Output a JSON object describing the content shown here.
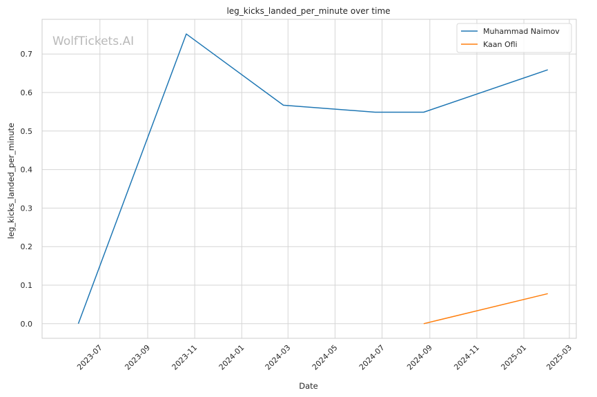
{
  "watermark": "WolfTickets.AI",
  "chart_data": {
    "type": "line",
    "title": "leg_kicks_landed_per_minute over time",
    "xlabel": "Date",
    "ylabel": "leg_kicks_landed_per_minute",
    "x_type": "date",
    "xlim": [
      "2023-04-17",
      "2025-03-10"
    ],
    "ylim": [
      -0.038,
      0.79
    ],
    "x_ticks": [
      "2023-07",
      "2023-09",
      "2023-11",
      "2024-01",
      "2024-03",
      "2024-05",
      "2024-07",
      "2024-09",
      "2024-11",
      "2025-01",
      "2025-03"
    ],
    "y_ticks": [
      0.0,
      0.1,
      0.2,
      0.3,
      0.4,
      0.5,
      0.6,
      0.7
    ],
    "grid": true,
    "legend_position": "top-right",
    "series": [
      {
        "name": "Muhammad Naimov",
        "color": "#1f77b4",
        "x": [
          "2023-06-03",
          "2023-10-21",
          "2024-02-24",
          "2024-06-22",
          "2024-08-24",
          "2025-02-01"
        ],
        "y": [
          0.0,
          0.752,
          0.567,
          0.549,
          0.549,
          0.659
        ]
      },
      {
        "name": "Kaan Ofli",
        "color": "#ff7f0e",
        "x": [
          "2024-08-24",
          "2025-02-01"
        ],
        "y": [
          0.0,
          0.078
        ]
      }
    ]
  }
}
